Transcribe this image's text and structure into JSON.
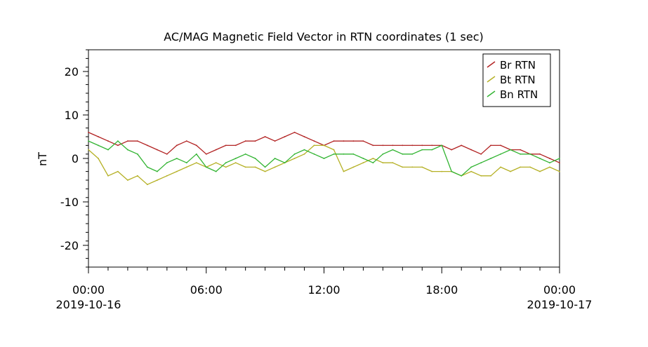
{
  "chart_data": {
    "type": "line",
    "title": "AC/MAG  Magnetic Field Vector in RTN coordinates (1 sec)",
    "ylabel": "nT",
    "ylim": [
      -25,
      25
    ],
    "xlim": [
      "2019-10-16 00:00",
      "2019-10-17 00:00"
    ],
    "y_ticks": [
      -20,
      -10,
      0,
      10,
      20
    ],
    "x_ticks": [
      {
        "time": "2019-10-16 00:00",
        "label": "00:00",
        "sublabel": "2019-10-16"
      },
      {
        "time": "2019-10-16 06:00",
        "label": "06:00",
        "sublabel": ""
      },
      {
        "time": "2019-10-16 12:00",
        "label": "12:00",
        "sublabel": ""
      },
      {
        "time": "2019-10-16 18:00",
        "label": "18:00",
        "sublabel": ""
      },
      {
        "time": "2019-10-17 00:00",
        "label": "00:00",
        "sublabel": "2019-10-17"
      }
    ],
    "grid": false,
    "legend_position": "top-right",
    "series": [
      {
        "name": "Br RTN",
        "color": "#b22222",
        "x": [
          "2019-10-16 00:00",
          "2019-10-16 00:30",
          "2019-10-16 01:00",
          "2019-10-16 01:30",
          "2019-10-16 02:00",
          "2019-10-16 02:30",
          "2019-10-16 03:00",
          "2019-10-16 03:30",
          "2019-10-16 04:00",
          "2019-10-16 04:30",
          "2019-10-16 05:00",
          "2019-10-16 05:30",
          "2019-10-16 06:00",
          "2019-10-16 06:30",
          "2019-10-16 07:00",
          "2019-10-16 07:30",
          "2019-10-16 08:00",
          "2019-10-16 08:30",
          "2019-10-16 09:00",
          "2019-10-16 09:30",
          "2019-10-16 10:00",
          "2019-10-16 10:30",
          "2019-10-16 11:00",
          "2019-10-16 11:30",
          "2019-10-16 12:00",
          "2019-10-16 12:30",
          "2019-10-16 13:00",
          "2019-10-16 13:30",
          "2019-10-16 14:00",
          "2019-10-16 14:30",
          "2019-10-16 15:00",
          "2019-10-16 15:30",
          "2019-10-16 16:00",
          "2019-10-16 16:30",
          "2019-10-16 17:00",
          "2019-10-16 17:30",
          "2019-10-16 18:00",
          "2019-10-16 18:30",
          "2019-10-16 19:00",
          "2019-10-16 19:30",
          "2019-10-16 20:00",
          "2019-10-16 20:30",
          "2019-10-16 21:00",
          "2019-10-16 21:30",
          "2019-10-16 22:00",
          "2019-10-16 22:30",
          "2019-10-16 23:00",
          "2019-10-16 23:30",
          "2019-10-17 00:00"
        ],
        "values": [
          6,
          5,
          4,
          3,
          4,
          4,
          3,
          2,
          1,
          3,
          4,
          3,
          1,
          2,
          3,
          3,
          4,
          4,
          5,
          4,
          5,
          6,
          5,
          4,
          3,
          4,
          4,
          4,
          4,
          3,
          3,
          3,
          3,
          3,
          3,
          3,
          3,
          2,
          3,
          2,
          1,
          3,
          3,
          2,
          2,
          1,
          1,
          0,
          -1
        ]
      },
      {
        "name": "Bt RTN",
        "color": "#b5b024",
        "x": [
          "2019-10-16 00:00",
          "2019-10-16 00:30",
          "2019-10-16 01:00",
          "2019-10-16 01:30",
          "2019-10-16 02:00",
          "2019-10-16 02:30",
          "2019-10-16 03:00",
          "2019-10-16 03:30",
          "2019-10-16 04:00",
          "2019-10-16 04:30",
          "2019-10-16 05:00",
          "2019-10-16 05:30",
          "2019-10-16 06:00",
          "2019-10-16 06:30",
          "2019-10-16 07:00",
          "2019-10-16 07:30",
          "2019-10-16 08:00",
          "2019-10-16 08:30",
          "2019-10-16 09:00",
          "2019-10-16 09:30",
          "2019-10-16 10:00",
          "2019-10-16 10:30",
          "2019-10-16 11:00",
          "2019-10-16 11:30",
          "2019-10-16 12:00",
          "2019-10-16 12:30",
          "2019-10-16 13:00",
          "2019-10-16 13:30",
          "2019-10-16 14:00",
          "2019-10-16 14:30",
          "2019-10-16 15:00",
          "2019-10-16 15:30",
          "2019-10-16 16:00",
          "2019-10-16 16:30",
          "2019-10-16 17:00",
          "2019-10-16 17:30",
          "2019-10-16 18:00",
          "2019-10-16 18:30",
          "2019-10-16 19:00",
          "2019-10-16 19:30",
          "2019-10-16 20:00",
          "2019-10-16 20:30",
          "2019-10-16 21:00",
          "2019-10-16 21:30",
          "2019-10-16 22:00",
          "2019-10-16 22:30",
          "2019-10-16 23:00",
          "2019-10-16 23:30",
          "2019-10-17 00:00"
        ],
        "values": [
          2,
          0,
          -4,
          -3,
          -5,
          -4,
          -6,
          -5,
          -4,
          -3,
          -2,
          -1,
          -2,
          -1,
          -2,
          -1,
          -2,
          -2,
          -3,
          -2,
          -1,
          0,
          1,
          3,
          3,
          2,
          -3,
          -2,
          -1,
          0,
          -1,
          -1,
          -2,
          -2,
          -2,
          -3,
          -3,
          -3,
          -4,
          -3,
          -4,
          -4,
          -2,
          -3,
          -2,
          -2,
          -3,
          -2,
          -3
        ]
      },
      {
        "name": "Bn RTN",
        "color": "#32b432",
        "x": [
          "2019-10-16 00:00",
          "2019-10-16 00:30",
          "2019-10-16 01:00",
          "2019-10-16 01:30",
          "2019-10-16 02:00",
          "2019-10-16 02:30",
          "2019-10-16 03:00",
          "2019-10-16 03:30",
          "2019-10-16 04:00",
          "2019-10-16 04:30",
          "2019-10-16 05:00",
          "2019-10-16 05:30",
          "2019-10-16 06:00",
          "2019-10-16 06:30",
          "2019-10-16 07:00",
          "2019-10-16 07:30",
          "2019-10-16 08:00",
          "2019-10-16 08:30",
          "2019-10-16 09:00",
          "2019-10-16 09:30",
          "2019-10-16 10:00",
          "2019-10-16 10:30",
          "2019-10-16 11:00",
          "2019-10-16 11:30",
          "2019-10-16 12:00",
          "2019-10-16 12:30",
          "2019-10-16 13:00",
          "2019-10-16 13:30",
          "2019-10-16 14:00",
          "2019-10-16 14:30",
          "2019-10-16 15:00",
          "2019-10-16 15:30",
          "2019-10-16 16:00",
          "2019-10-16 16:30",
          "2019-10-16 17:00",
          "2019-10-16 17:30",
          "2019-10-16 18:00",
          "2019-10-16 18:30",
          "2019-10-16 19:00",
          "2019-10-16 19:30",
          "2019-10-16 20:00",
          "2019-10-16 20:30",
          "2019-10-16 21:00",
          "2019-10-16 21:30",
          "2019-10-16 22:00",
          "2019-10-16 22:30",
          "2019-10-16 23:00",
          "2019-10-16 23:30",
          "2019-10-17 00:00"
        ],
        "values": [
          4,
          3,
          2,
          4,
          2,
          1,
          -2,
          -3,
          -1,
          0,
          -1,
          1,
          -2,
          -3,
          -1,
          0,
          1,
          0,
          -2,
          0,
          -1,
          1,
          2,
          1,
          0,
          1,
          1,
          1,
          0,
          -1,
          1,
          2,
          1,
          1,
          2,
          2,
          3,
          -3,
          -4,
          -2,
          -1,
          0,
          1,
          2,
          1,
          1,
          0,
          -1,
          0
        ]
      }
    ]
  }
}
